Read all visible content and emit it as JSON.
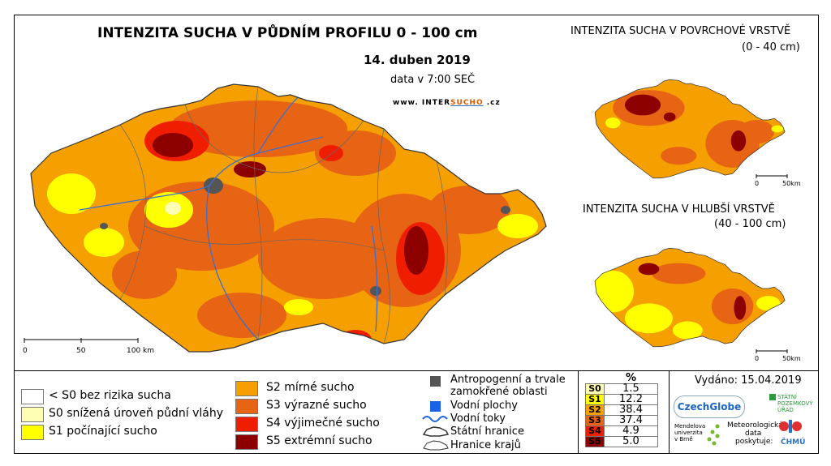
{
  "title": "INTENZITA SUCHA V PŮDNÍM PROFILU 0 - 100 cm",
  "date": "14. duben 2019",
  "data_time": "data v 7:00 SEČ",
  "web": {
    "pre": "www. INTER",
    "mid": "SUCHO",
    "post": " .cz"
  },
  "surface_map": {
    "title": "INTENZITA SUCHA V POVRCHOVÉ VRSTVĚ",
    "subtitle": "(0 - 40 cm)",
    "scale": [
      "0",
      "50km"
    ]
  },
  "deep_map": {
    "title": "INTENZITA SUCHA V HLUBŠÍ VRSTVĚ",
    "subtitle": "(40 - 100 cm)",
    "scale": [
      "0",
      "50km"
    ]
  },
  "main_scale": [
    "0",
    "50",
    "100 km"
  ],
  "legend": {
    "classes": [
      {
        "label": "< S0 bez rizika sucha",
        "color": "#ffffff"
      },
      {
        "label": "S0 snížená úroveň půdní vláhy",
        "color": "#ffffb4"
      },
      {
        "label": "S1 počínající sucho",
        "color": "#ffff00"
      },
      {
        "label": "S2 mírné sucho",
        "color": "#f5a000"
      },
      {
        "label": "S3 výrazné sucho",
        "color": "#e66414"
      },
      {
        "label": "S4 výjimečné sucho",
        "color": "#f01e00"
      },
      {
        "label": "S5 extrémní sucho",
        "color": "#8c0000"
      }
    ],
    "other": {
      "anthropogenic": "Antropogenní a trvale",
      "anthropogenic2": "zamokřené oblasti",
      "water_bodies": "Vodní plochy",
      "rivers": "Vodní toky",
      "state_border": "Státní hranice",
      "region_border": "Hranice krajů"
    }
  },
  "percent_table": {
    "header": "%",
    "rows": [
      {
        "code": "S0",
        "value": "1.5",
        "color": "#ffffb4"
      },
      {
        "code": "S1",
        "value": "12.2",
        "color": "#ffff00"
      },
      {
        "code": "S2",
        "value": "38.4",
        "color": "#f5a000"
      },
      {
        "code": "S3",
        "value": "37.4",
        "color": "#e66414"
      },
      {
        "code": "S4",
        "value": "4.9",
        "color": "#f01e00"
      },
      {
        "code": "S5",
        "value": "5.0",
        "color": "#8c0000"
      }
    ]
  },
  "issued": "Vydáno: 15.04.2019",
  "logos": {
    "czechglobe": "CzechGlobe",
    "spu": [
      "STÁTNÍ",
      "POZEMKOVÝ",
      "ÚŘAD"
    ],
    "mendelu": [
      "Mendelova",
      "univerzita",
      "v Brně"
    ],
    "meteo": [
      "Meteorologická",
      "data",
      "poskytuje:"
    ],
    "chmu": "ČHMÚ"
  }
}
